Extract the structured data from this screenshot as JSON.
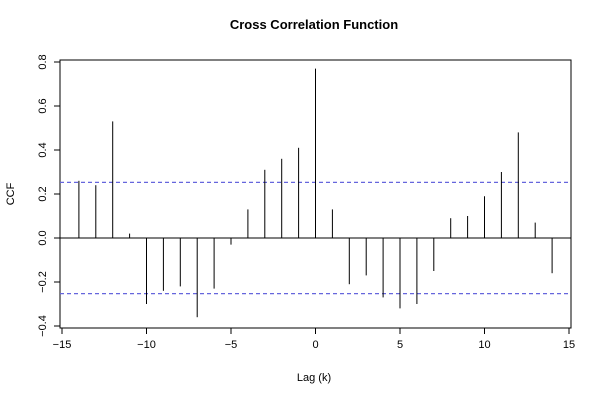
{
  "chart_data": {
    "type": "bar",
    "title": "Cross Correlation Function",
    "xlabel": "Lag (k)",
    "ylabel": "CCF",
    "xlim": [
      -15,
      15
    ],
    "ylim": [
      -0.4,
      0.8
    ],
    "xticks": [
      -15,
      -10,
      -5,
      0,
      5,
      10,
      15
    ],
    "xtick_labels": [
      "−15",
      "−10",
      "−5",
      "0",
      "5",
      "10",
      "15"
    ],
    "yticks": [
      -0.4,
      -0.2,
      0.0,
      0.2,
      0.4,
      0.6,
      0.8
    ],
    "ytick_labels": [
      "−0.4",
      "−0.2",
      "0.0",
      "0.2",
      "0.4",
      "0.6",
      "0.8"
    ],
    "x": [
      -14,
      -13,
      -12,
      -11,
      -10,
      -9,
      -8,
      -7,
      -6,
      -5,
      -4,
      -3,
      -2,
      -1,
      0,
      1,
      2,
      3,
      4,
      5,
      6,
      7,
      8,
      9,
      10,
      11,
      12,
      13,
      14
    ],
    "values": [
      0.26,
      0.24,
      0.53,
      0.02,
      -0.3,
      -0.24,
      -0.22,
      -0.36,
      -0.23,
      -0.03,
      0.13,
      0.31,
      0.36,
      0.41,
      0.77,
      0.13,
      -0.21,
      -0.17,
      -0.27,
      -0.32,
      -0.3,
      -0.15,
      0.09,
      0.1,
      0.19,
      0.3,
      0.48,
      0.07,
      -0.16
    ],
    "confidence_bounds": [
      0.253,
      -0.253
    ],
    "grid": false,
    "colors": {
      "spikes": "#000000",
      "bounds": "#6666dd",
      "zero_line": "#000000"
    }
  }
}
